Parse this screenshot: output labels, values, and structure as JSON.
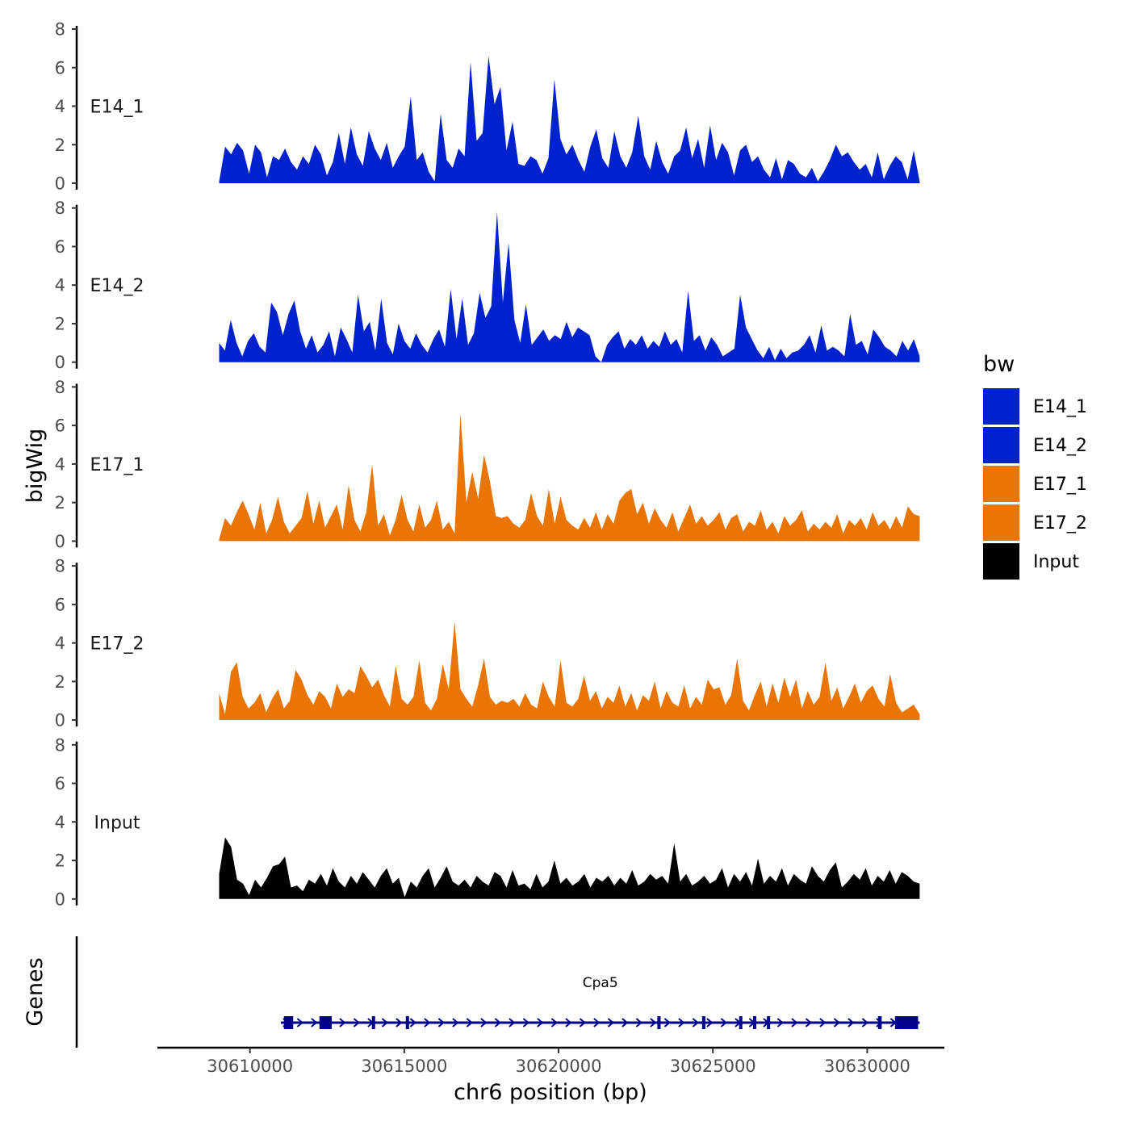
{
  "chart_data": {
    "type": "area",
    "chromosome": "chr6",
    "xlabel": "chr6 position (bp)",
    "ylabel": "bigWig",
    "genes_label": "Genes",
    "xlim": [
      30607000,
      30632500
    ],
    "x_ticks": [
      30610000,
      30615000,
      30620000,
      30625000,
      30630000
    ],
    "x_tick_labels": [
      "30610000",
      "30615000",
      "30620000",
      "30625000",
      "30630000"
    ],
    "ylim": [
      0,
      8
    ],
    "y_ticks": [
      0,
      2,
      4,
      6,
      8
    ],
    "y_tick_labels": [
      "0",
      "2",
      "4",
      "6",
      "8"
    ],
    "region_start": 30609000,
    "region_end": 30631700,
    "legend": {
      "title": "bw",
      "entries": [
        {
          "label": "E14_1",
          "color": "#0022cc"
        },
        {
          "label": "E14_2",
          "color": "#0022cc"
        },
        {
          "label": "E17_1",
          "color": "#e87506"
        },
        {
          "label": "E17_2",
          "color": "#e87506"
        },
        {
          "label": "Input",
          "color": "#000000"
        }
      ]
    },
    "tracks": [
      {
        "name": "E14_1",
        "color": "#0022cc",
        "values": [
          0.1,
          1.9,
          1.5,
          2.1,
          1.7,
          0.5,
          2.0,
          1.6,
          0.3,
          1.4,
          1.2,
          1.8,
          1.1,
          0.7,
          1.4,
          1.0,
          2.0,
          1.5,
          0.4,
          1.1,
          2.6,
          1.0,
          2.9,
          1.5,
          0.9,
          2.7,
          1.8,
          1.2,
          2.1,
          0.8,
          1.4,
          1.9,
          4.5,
          1.2,
          1.6,
          0.6,
          0.1,
          3.6,
          1.2,
          0.8,
          1.8,
          1.4,
          6.3,
          2.2,
          2.6,
          6.6,
          4.1,
          5.0,
          1.7,
          3.2,
          1.0,
          0.9,
          1.4,
          1.2,
          0.5,
          1.3,
          5.4,
          2.3,
          1.5,
          2.0,
          1.2,
          0.6,
          1.9,
          2.8,
          1.3,
          0.8,
          2.7,
          1.4,
          0.8,
          1.6,
          3.5,
          1.4,
          0.7,
          2.2,
          1.1,
          0.5,
          1.4,
          1.7,
          2.9,
          1.3,
          2.3,
          0.8,
          3.0,
          1.2,
          2.1,
          1.6,
          0.4,
          1.7,
          2.0,
          1.1,
          1.4,
          0.7,
          0.3,
          1.3,
          0.2,
          1.2,
          1.0,
          0.5,
          0.3,
          0.8,
          0.1,
          0.6,
          1.2,
          2.0,
          1.4,
          1.6,
          1.1,
          0.7,
          1.0,
          0.3,
          1.6,
          0.2,
          0.9,
          1.4,
          1.1,
          0.2,
          1.7,
          0.1
        ]
      },
      {
        "name": "E14_2",
        "color": "#0022cc",
        "values": [
          1.0,
          0.6,
          2.2,
          1.0,
          0.3,
          1.1,
          1.5,
          0.8,
          0.5,
          3.1,
          2.6,
          1.4,
          2.5,
          3.2,
          1.6,
          0.7,
          1.4,
          0.5,
          0.9,
          1.6,
          0.3,
          1.8,
          1.2,
          0.5,
          3.5,
          1.6,
          2.1,
          0.6,
          3.3,
          1.0,
          0.4,
          2.0,
          1.1,
          0.7,
          1.5,
          0.9,
          0.5,
          1.2,
          1.7,
          0.8,
          3.8,
          1.2,
          3.3,
          0.9,
          1.5,
          3.6,
          2.3,
          2.9,
          7.8,
          3.1,
          6.2,
          2.2,
          1.0,
          3.0,
          0.9,
          1.3,
          1.7,
          1.1,
          1.4,
          1.2,
          2.1,
          1.3,
          1.8,
          1.6,
          1.4,
          0.3,
          0.0,
          0.9,
          1.3,
          1.6,
          0.7,
          1.2,
          0.9,
          1.4,
          0.7,
          1.1,
          0.8,
          1.6,
          0.9,
          1.2,
          0.5,
          3.7,
          1.1,
          1.4,
          0.6,
          1.3,
          0.9,
          0.3,
          0.5,
          0.7,
          3.5,
          1.8,
          1.2,
          0.6,
          0.2,
          0.8,
          0.1,
          0.7,
          0.2,
          0.5,
          0.6,
          0.9,
          1.4,
          0.5,
          1.9,
          0.6,
          0.8,
          0.6,
          0.3,
          2.5,
          0.9,
          1.1,
          0.4,
          1.7,
          1.3,
          0.8,
          0.6,
          0.3,
          1.1,
          0.6,
          1.2,
          0.3
        ]
      },
      {
        "name": "E17_1",
        "color": "#e87506",
        "values": [
          0.1,
          1.2,
          0.8,
          1.5,
          2.1,
          1.4,
          0.6,
          2.0,
          0.4,
          1.1,
          2.3,
          1.0,
          0.4,
          0.8,
          1.2,
          2.6,
          0.9,
          2.1,
          0.7,
          1.3,
          1.9,
          0.6,
          2.9,
          1.1,
          0.5,
          1.5,
          4.0,
          0.8,
          1.4,
          0.3,
          1.1,
          2.4,
          1.1,
          0.5,
          1.9,
          0.7,
          1.1,
          2.1,
          0.6,
          1.0,
          0.4,
          6.6,
          2.0,
          3.6,
          2.2,
          4.5,
          3.1,
          1.3,
          1.2,
          1.3,
          0.9,
          0.7,
          1.1,
          2.5,
          1.3,
          0.8,
          2.7,
          0.9,
          2.3,
          1.1,
          0.8,
          0.6,
          1.2,
          0.7,
          1.5,
          0.6,
          1.4,
          0.9,
          2.1,
          2.5,
          2.7,
          1.4,
          2.0,
          0.9,
          1.7,
          1.1,
          0.7,
          1.5,
          0.5,
          1.2,
          1.9,
          0.9,
          1.3,
          0.8,
          1.1,
          1.5,
          0.6,
          1.2,
          1.4,
          0.5,
          1.0,
          0.8,
          1.6,
          0.6,
          1.0,
          0.4,
          1.3,
          0.8,
          1.1,
          1.6,
          0.5,
          0.9,
          0.6,
          1.0,
          0.7,
          1.4,
          0.4,
          1.1,
          0.8,
          1.2,
          0.6,
          1.5,
          0.8,
          1.1,
          0.6,
          1.3,
          0.7,
          1.8,
          1.4,
          1.3
        ]
      },
      {
        "name": "E17_2",
        "color": "#e87506",
        "values": [
          1.4,
          0.3,
          2.5,
          3.0,
          1.2,
          0.6,
          0.9,
          1.4,
          0.4,
          1.1,
          1.6,
          0.6,
          1.0,
          2.6,
          2.1,
          1.3,
          0.8,
          1.5,
          1.2,
          0.6,
          1.9,
          1.2,
          1.6,
          1.4,
          2.8,
          2.3,
          1.7,
          2.1,
          1.3,
          0.7,
          2.8,
          1.1,
          0.8,
          1.2,
          3.1,
          0.9,
          0.5,
          1.1,
          2.9,
          1.6,
          5.1,
          1.6,
          1.1,
          0.7,
          1.8,
          3.2,
          1.2,
          0.8,
          1.0,
          0.9,
          1.1,
          0.7,
          1.4,
          0.8,
          0.6,
          2.0,
          1.2,
          0.7,
          3.1,
          0.9,
          0.7,
          1.1,
          2.3,
          1.0,
          1.5,
          0.6,
          1.2,
          0.9,
          1.8,
          0.7,
          1.4,
          0.5,
          1.3,
          1.0,
          2.0,
          0.6,
          1.5,
          0.9,
          0.7,
          1.8,
          0.6,
          1.2,
          0.8,
          2.1,
          1.6,
          1.7,
          0.8,
          1.3,
          3.2,
          1.0,
          0.5,
          1.3,
          2.0,
          0.7,
          1.9,
          0.9,
          2.2,
          1.2,
          2.1,
          0.6,
          1.5,
          0.8,
          1.2,
          3.0,
          1.0,
          1.7,
          0.6,
          1.2,
          1.9,
          0.9,
          1.5,
          1.8,
          1.1,
          0.7,
          2.4,
          0.9,
          0.4,
          0.6,
          0.8,
          0.3
        ]
      },
      {
        "name": "Input",
        "color": "#000000",
        "values": [
          1.3,
          3.2,
          2.7,
          1.0,
          0.8,
          0.2,
          1.0,
          0.6,
          1.1,
          1.7,
          1.8,
          2.2,
          0.6,
          0.7,
          0.4,
          1.0,
          0.8,
          1.3,
          0.7,
          1.6,
          0.9,
          0.6,
          1.2,
          0.8,
          1.4,
          1.0,
          0.6,
          1.2,
          1.6,
          0.8,
          1.1,
          0.1,
          0.9,
          0.6,
          1.2,
          1.6,
          0.6,
          1.1,
          1.7,
          0.9,
          0.7,
          1.0,
          0.6,
          1.2,
          0.9,
          0.7,
          1.4,
          1.2,
          0.6,
          1.5,
          0.7,
          0.8,
          0.5,
          1.3,
          0.6,
          0.9,
          2.0,
          0.8,
          1.1,
          0.7,
          0.9,
          1.3,
          0.6,
          1.1,
          0.9,
          1.2,
          0.7,
          1.1,
          0.8,
          1.5,
          0.7,
          0.9,
          1.3,
          1.0,
          1.2,
          0.8,
          2.9,
          0.9,
          1.3,
          0.7,
          0.9,
          1.2,
          0.8,
          1.0,
          1.6,
          0.6,
          1.3,
          0.9,
          1.4,
          0.7,
          2.1,
          0.8,
          1.2,
          0.9,
          1.6,
          0.7,
          1.3,
          1.0,
          0.8,
          1.7,
          1.2,
          0.9,
          1.5,
          1.9,
          0.6,
          0.9,
          1.3,
          1.0,
          1.6,
          0.7,
          1.2,
          0.9,
          1.5,
          0.8,
          1.4,
          1.2,
          0.9,
          0.8
        ]
      }
    ],
    "gene": {
      "name": "Cpa5",
      "start": 30611000,
      "end": 30631700,
      "strand": "+",
      "color": "#00008b",
      "exons": [
        [
          30611100,
          30611400
        ],
        [
          30612250,
          30612650
        ],
        [
          30613950,
          30614030
        ],
        [
          30615050,
          30615120
        ],
        [
          30623200,
          30623270
        ],
        [
          30624650,
          30624720
        ],
        [
          30625850,
          30625920
        ],
        [
          30626300,
          30626370
        ],
        [
          30626750,
          30626820
        ],
        [
          30630350,
          30630470
        ],
        [
          30630900,
          30631650
        ]
      ]
    }
  }
}
